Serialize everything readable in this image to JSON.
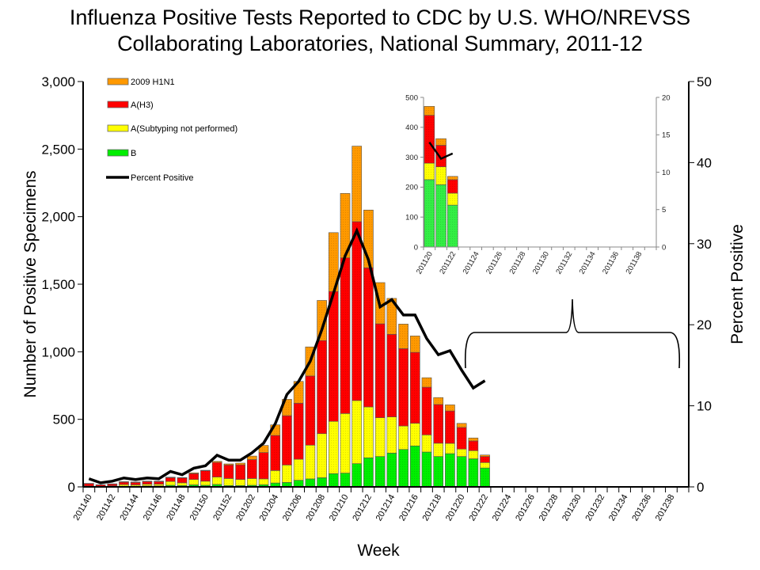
{
  "chart_data": [
    {
      "type": "bar",
      "stacked": true,
      "title": "Influenza Positive Tests Reported to CDC by U.S. WHO/NREVSS Collaborating Laboratories, National Summary, 2011-12",
      "title_lines": [
        "Influenza Positive Tests Reported to CDC by U.S. WHO/NREVSS",
        "Collaborating Laboratories, National Summary, 2011-12"
      ],
      "xlabel": "Week",
      "ylabel": "Number of Positive Specimens",
      "y2label": "Percent Positive",
      "ylim": [
        0,
        3000
      ],
      "y_ticks": [
        "0",
        "500",
        "1,000",
        "1,500",
        "2,000",
        "2,500",
        "3,000"
      ],
      "y2lim": [
        0,
        50
      ],
      "y2_ticks": [
        "0",
        "10",
        "20",
        "30",
        "40",
        "50"
      ],
      "x_ticks": [
        "201140",
        "201142",
        "201144",
        "201146",
        "201148",
        "201150",
        "201152",
        "201202",
        "201204",
        "201206",
        "201208",
        "201210",
        "201212",
        "201214",
        "201216",
        "201218",
        "201220",
        "201222",
        "201224",
        "201226",
        "201228",
        "201230",
        "201232",
        "201234",
        "201236",
        "201238"
      ],
      "x_slots": 52,
      "grid": false,
      "legend_position": "top-left",
      "categories": [
        "201140",
        "201141",
        "201142",
        "201143",
        "201144",
        "201145",
        "201146",
        "201147",
        "201148",
        "201149",
        "201150",
        "201151",
        "201152",
        "201201",
        "201202",
        "201203",
        "201204",
        "201205",
        "201206",
        "201207",
        "201208",
        "201209",
        "201210",
        "201211",
        "201212",
        "201213",
        "201214",
        "201215",
        "201216",
        "201217",
        "201218",
        "201219",
        "201220",
        "201221",
        "201222"
      ],
      "series": [
        {
          "name": "B",
          "color": "#00EE00",
          "values": [
            2,
            1,
            2,
            5,
            5,
            8,
            8,
            12,
            10,
            15,
            12,
            18,
            10,
            10,
            12,
            16,
            29,
            33,
            49,
            59,
            68,
            98,
            102,
            172,
            215,
            225,
            250,
            277,
            303,
            258,
            225,
            246,
            225,
            208,
            140
          ]
        },
        {
          "name": "A(Subtyping not performed)",
          "color": "#FFFF00",
          "values": [
            4,
            3,
            6,
            12,
            10,
            12,
            12,
            28,
            20,
            40,
            30,
            55,
            52,
            45,
            50,
            43,
            92,
            129,
            156,
            250,
            326,
            387,
            441,
            467,
            377,
            287,
            268,
            174,
            168,
            127,
            98,
            76,
            55,
            60,
            40
          ]
        },
        {
          "name": "A(H3)",
          "color": "#FF0000",
          "values": [
            18,
            11,
            13,
            18,
            18,
            19,
            19,
            28,
            36,
            43,
            78,
            108,
            100,
            108,
            140,
            195,
            260,
            365,
            414,
            512,
            689,
            961,
            1152,
            1324,
            1029,
            695,
            611,
            572,
            525,
            353,
            287,
            240,
            160,
            72,
            45
          ]
        },
        {
          "name": "2009 H1N1",
          "color": "#FF9900",
          "values": [
            2,
            1,
            2,
            4,
            4,
            4,
            4,
            4,
            3,
            6,
            3,
            8,
            8,
            13,
            26,
            53,
            78,
            121,
            162,
            215,
            297,
            436,
            477,
            559,
            428,
            305,
            266,
            182,
            121,
            70,
            51,
            45,
            30,
            22,
            11
          ]
        }
      ],
      "line": {
        "name": "Percent Positive",
        "color": "#000000",
        "axis": "right",
        "values": [
          1.0,
          0.5,
          0.7,
          1.1,
          0.9,
          1.1,
          1.0,
          1.9,
          1.5,
          2.3,
          2.6,
          3.9,
          3.3,
          3.3,
          4.2,
          5.4,
          7.8,
          11.4,
          13.0,
          15.5,
          19.4,
          23.9,
          28.5,
          31.6,
          28.0,
          22.2,
          23.1,
          21.2,
          21.2,
          18.3,
          16.3,
          16.8,
          14.4,
          12.2,
          13.1
        ]
      }
    },
    {
      "type": "bar",
      "stacked": true,
      "inset": true,
      "ylim": [
        0,
        500
      ],
      "y_ticks": [
        "0",
        "100",
        "200",
        "300",
        "400",
        "500"
      ],
      "y2lim": [
        0,
        20
      ],
      "y2_ticks": [
        "0",
        "5",
        "10",
        "15",
        "20"
      ],
      "x_ticks": [
        "201120",
        "201122",
        "201124",
        "201126",
        "201128",
        "201130",
        "201132",
        "201134",
        "201136",
        "201138"
      ],
      "x_slots": 20,
      "categories": [
        "201120",
        "201121",
        "201122"
      ],
      "series": [
        {
          "name": "B",
          "color": "#33EE44",
          "values": [
            225,
            208,
            140
          ]
        },
        {
          "name": "A(Subtyping not performed)",
          "color": "#FFFF00",
          "values": [
            55,
            60,
            40
          ]
        },
        {
          "name": "A(H3)",
          "color": "#FF0000",
          "values": [
            160,
            72,
            45
          ]
        },
        {
          "name": "2009 H1N1",
          "color": "#FF9900",
          "values": [
            30,
            22,
            11
          ]
        }
      ],
      "line": {
        "name": "Percent Positive",
        "color": "#000000",
        "axis": "right",
        "values": [
          14.0,
          11.8,
          12.5
        ]
      }
    }
  ],
  "legend": [
    {
      "label": "2009 H1N1",
      "color": "#FF9900"
    },
    {
      "label": "A(H3)",
      "color": "#FF0000"
    },
    {
      "label": "A(Subtyping not performed)",
      "color": "#FFFF00"
    },
    {
      "label": "B",
      "color": "#00EE00"
    },
    {
      "label": "Percent Positive",
      "color": "#000000"
    }
  ]
}
